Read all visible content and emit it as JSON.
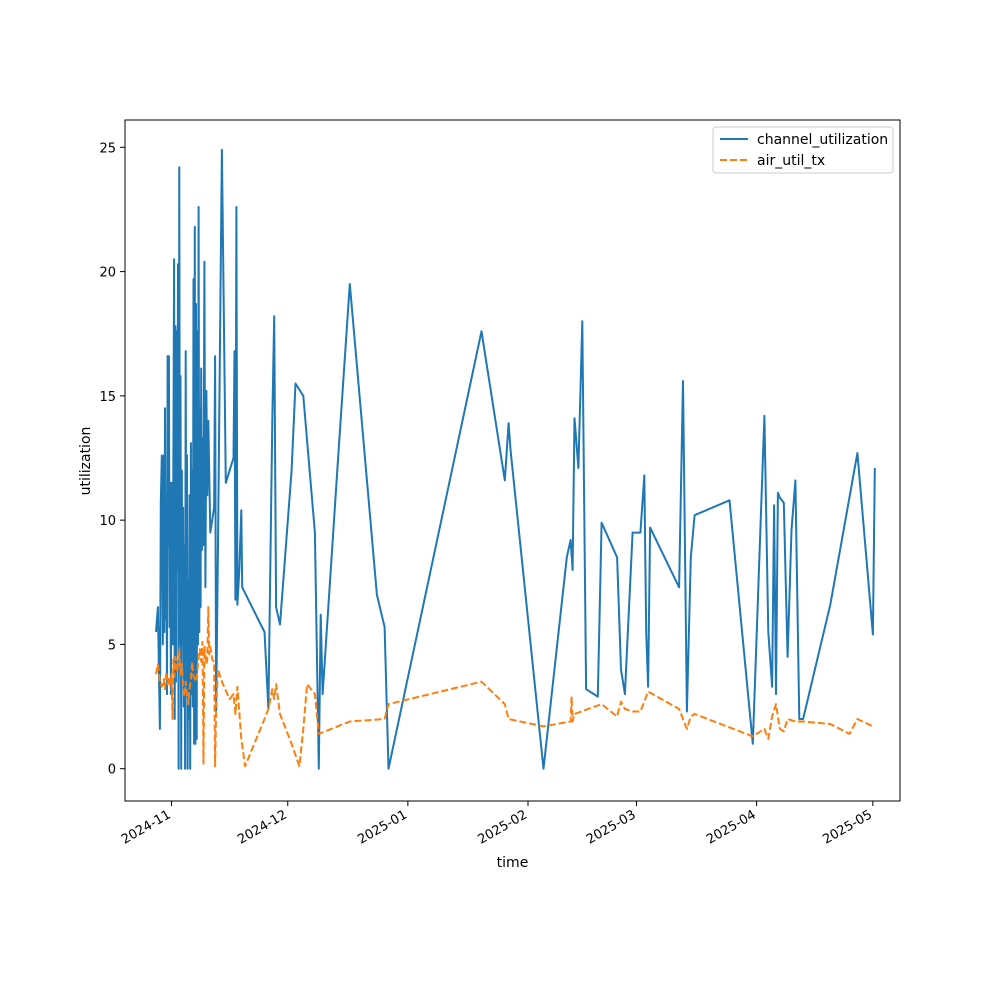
{
  "chart_data": {
    "type": "line",
    "title": "",
    "xlabel": "time",
    "ylabel": "utilization",
    "x_axis": {
      "type": "date",
      "range": [
        "2024-10-20",
        "2025-05-08"
      ],
      "ticks": [
        {
          "date": "2024-11-01",
          "label": "2024-11"
        },
        {
          "date": "2024-12-01",
          "label": "2024-12"
        },
        {
          "date": "2025-01-01",
          "label": "2025-01"
        },
        {
          "date": "2025-02-01",
          "label": "2025-02"
        },
        {
          "date": "2025-03-01",
          "label": "2025-03"
        },
        {
          "date": "2025-04-01",
          "label": "2025-04"
        },
        {
          "date": "2025-05-01",
          "label": "2025-05"
        }
      ]
    },
    "y_axis": {
      "range": [
        -1.3,
        26.1
      ],
      "ticks": [
        0,
        5,
        10,
        15,
        20,
        25
      ]
    },
    "grid": false,
    "legend_position": "top-right",
    "series": [
      {
        "name": "channel_utilization",
        "color": "#1f77b4",
        "dash": "solid",
        "points": [
          [
            "2024-10-28",
            5.5
          ],
          [
            "2024-10-28 12:00",
            6.5
          ],
          [
            "2024-10-29",
            1.6
          ],
          [
            "2024-10-29 06:00",
            10.7
          ],
          [
            "2024-10-29 12:00",
            12.6
          ],
          [
            "2024-10-29 18:00",
            5.0
          ],
          [
            "2024-10-30",
            12.6
          ],
          [
            "2024-10-30 04:00",
            5.5
          ],
          [
            "2024-10-30 08:00",
            14.5
          ],
          [
            "2024-10-30 12:00",
            6.0
          ],
          [
            "2024-10-30 16:00",
            10.7
          ],
          [
            "2024-10-30 20:00",
            3.0
          ],
          [
            "2024-10-31",
            16.6
          ],
          [
            "2024-10-31 04:00",
            9.0
          ],
          [
            "2024-10-31 08:00",
            16.6
          ],
          [
            "2024-10-31 12:00",
            5.7
          ],
          [
            "2024-10-31 16:00",
            11.5
          ],
          [
            "2024-10-31 20:00",
            3.0
          ],
          [
            "2024-11-01",
            11.5
          ],
          [
            "2024-11-01 04:00",
            9.0
          ],
          [
            "2024-11-01 08:00",
            5.0
          ],
          [
            "2024-11-01 12:00",
            12.8
          ],
          [
            "2024-11-01 16:00",
            20.5
          ],
          [
            "2024-11-01 20:00",
            2.0
          ],
          [
            "2024-11-02",
            17.8
          ],
          [
            "2024-11-02 04:00",
            3.5
          ],
          [
            "2024-11-02 08:00",
            17.6
          ],
          [
            "2024-11-02 12:00",
            8.0
          ],
          [
            "2024-11-02 16:00",
            20.3
          ],
          [
            "2024-11-02 20:00",
            0
          ],
          [
            "2024-11-03",
            24.2
          ],
          [
            "2024-11-03 04:00",
            5.0
          ],
          [
            "2024-11-03 08:00",
            15.8
          ],
          [
            "2024-11-03 12:00",
            0
          ],
          [
            "2024-11-03 16:00",
            12.0
          ],
          [
            "2024-11-03 20:00",
            5.0
          ],
          [
            "2024-11-04",
            10.5
          ],
          [
            "2024-11-04 04:00",
            2.5
          ],
          [
            "2024-11-04 08:00",
            9.0
          ],
          [
            "2024-11-04 12:00",
            0
          ],
          [
            "2024-11-04 16:00",
            16.8
          ],
          [
            "2024-11-04 20:00",
            3.0
          ],
          [
            "2024-11-05",
            12.6
          ],
          [
            "2024-11-05 04:00",
            0
          ],
          [
            "2024-11-05 08:00",
            7.5
          ],
          [
            "2024-11-05 12:00",
            2.0
          ],
          [
            "2024-11-05 16:00",
            11.0
          ],
          [
            "2024-11-05 20:00",
            0
          ],
          [
            "2024-11-06",
            13.1
          ],
          [
            "2024-11-06 04:00",
            3.0
          ],
          [
            "2024-11-06 08:00",
            12.0
          ],
          [
            "2024-11-06 12:00",
            2.5
          ],
          [
            "2024-11-06 16:00",
            19.7
          ],
          [
            "2024-11-06 20:00",
            1.0
          ],
          [
            "2024-11-07",
            21.8
          ],
          [
            "2024-11-07 04:00",
            1.0
          ],
          [
            "2024-11-07 08:00",
            18.7
          ],
          [
            "2024-11-07 12:00",
            1.2
          ],
          [
            "2024-11-07 16:00",
            17.6
          ],
          [
            "2024-11-07 20:00",
            5.0
          ],
          [
            "2024-11-08",
            22.6
          ],
          [
            "2024-11-08 04:00",
            5.5
          ],
          [
            "2024-11-08 08:00",
            14.5
          ],
          [
            "2024-11-08 12:00",
            6.5
          ],
          [
            "2024-11-08 16:00",
            16.1
          ],
          [
            "2024-11-08 20:00",
            8.8
          ],
          [
            "2024-11-09",
            13.3
          ],
          [
            "2024-11-09 06:00",
            9.0
          ],
          [
            "2024-11-09 12:00",
            20.4
          ],
          [
            "2024-11-09 18:00",
            7.3
          ],
          [
            "2024-11-10",
            15.2
          ],
          [
            "2024-11-10 06:00",
            11.0
          ],
          [
            "2024-11-10 12:00",
            14.0
          ],
          [
            "2024-11-11",
            9.5
          ],
          [
            "2024-11-12",
            10.5
          ],
          [
            "2024-11-12 06:00",
            16.6
          ],
          [
            "2024-11-12 12:00",
            2.3
          ],
          [
            "2024-11-13",
            9.0
          ],
          [
            "2024-11-14",
            24.9
          ],
          [
            "2024-11-15",
            11.5
          ],
          [
            "2024-11-16",
            12.0
          ],
          [
            "2024-11-17",
            12.5
          ],
          [
            "2024-11-17 06:00",
            16.8
          ],
          [
            "2024-11-17 12:00",
            6.8
          ],
          [
            "2024-11-17 18:00",
            22.6
          ],
          [
            "2024-11-18",
            6.6
          ],
          [
            "2024-11-18 12:00",
            8.0
          ],
          [
            "2024-11-19",
            10.4
          ],
          [
            "2024-11-19 06:00",
            7.3
          ],
          [
            "2024-11-25",
            5.5
          ],
          [
            "2024-11-26",
            2.4
          ],
          [
            "2024-11-27",
            14.0
          ],
          [
            "2024-11-27 12:00",
            18.2
          ],
          [
            "2024-11-28",
            6.5
          ],
          [
            "2024-11-29",
            5.8
          ],
          [
            "2024-12-02",
            12.0
          ],
          [
            "2024-12-03",
            15.5
          ],
          [
            "2024-12-05",
            15.0
          ],
          [
            "2024-12-08",
            9.5
          ],
          [
            "2024-12-09",
            0
          ],
          [
            "2024-12-09 12:00",
            6.2
          ],
          [
            "2024-12-10",
            3.0
          ],
          [
            "2024-12-14",
            12.5
          ],
          [
            "2024-12-17",
            19.5
          ],
          [
            "2024-12-24",
            7.0
          ],
          [
            "2024-12-26",
            5.7
          ],
          [
            "2024-12-27",
            0
          ],
          [
            "2025-01-20",
            17.6
          ],
          [
            "2025-01-26",
            11.6
          ],
          [
            "2025-01-27",
            13.9
          ],
          [
            "2025-01-27 12:00",
            12.8
          ],
          [
            "2025-02-05",
            0
          ],
          [
            "2025-02-11",
            8.5
          ],
          [
            "2025-02-12",
            9.2
          ],
          [
            "2025-02-12 12:00",
            8.0
          ],
          [
            "2025-02-13",
            14.1
          ],
          [
            "2025-02-14",
            12.1
          ],
          [
            "2025-02-15",
            18.0
          ],
          [
            "2025-02-16",
            3.2
          ],
          [
            "2025-02-19",
            2.9
          ],
          [
            "2025-02-20",
            9.9
          ],
          [
            "2025-02-24",
            8.5
          ],
          [
            "2025-02-25",
            4.0
          ],
          [
            "2025-02-26",
            3.0
          ],
          [
            "2025-02-28",
            9.5
          ],
          [
            "2025-03-02",
            9.5
          ],
          [
            "2025-03-03",
            11.8
          ],
          [
            "2025-03-03 12:00",
            5.5
          ],
          [
            "2025-03-04",
            3.3
          ],
          [
            "2025-03-04 12:00",
            9.7
          ],
          [
            "2025-03-12",
            7.3
          ],
          [
            "2025-03-13",
            15.6
          ],
          [
            "2025-03-14",
            2.3
          ],
          [
            "2025-03-15",
            8.5
          ],
          [
            "2025-03-16",
            10.2
          ],
          [
            "2025-03-25",
            10.8
          ],
          [
            "2025-03-31",
            1.0
          ],
          [
            "2025-04-03",
            14.2
          ],
          [
            "2025-04-04",
            5.5
          ],
          [
            "2025-04-05",
            3.3
          ],
          [
            "2025-04-05 12:00",
            10.6
          ],
          [
            "2025-04-06",
            3.0
          ],
          [
            "2025-04-06 12:00",
            11.1
          ],
          [
            "2025-04-07",
            10.9
          ],
          [
            "2025-04-08",
            10.7
          ],
          [
            "2025-04-09",
            4.5
          ],
          [
            "2025-04-10",
            9.6
          ],
          [
            "2025-04-11",
            11.6
          ],
          [
            "2025-04-12",
            2.0
          ],
          [
            "2025-04-13",
            2.0
          ],
          [
            "2025-04-20",
            6.6
          ],
          [
            "2025-04-27",
            12.7
          ],
          [
            "2025-05-01",
            5.4
          ],
          [
            "2025-05-01 12:00",
            12.1
          ]
        ]
      },
      {
        "name": "air_util_tx",
        "color": "#ff7f0e",
        "dash": "dashed",
        "points": [
          [
            "2024-10-28",
            3.8
          ],
          [
            "2024-10-28 12:00",
            4.2
          ],
          [
            "2024-10-29",
            3.5
          ],
          [
            "2024-10-29 12:00",
            3.3
          ],
          [
            "2024-10-30",
            3.6
          ],
          [
            "2024-10-30 08:00",
            3.2
          ],
          [
            "2024-10-30 16:00",
            3.9
          ],
          [
            "2024-10-31",
            3.4
          ],
          [
            "2024-10-31 08:00",
            3.7
          ],
          [
            "2024-10-31 16:00",
            3.3
          ],
          [
            "2024-11-01",
            3.8
          ],
          [
            "2024-11-01 06:00",
            2.0
          ],
          [
            "2024-11-01 12:00",
            4.4
          ],
          [
            "2024-11-01 18:00",
            3.7
          ],
          [
            "2024-11-02",
            4.5
          ],
          [
            "2024-11-02 12:00",
            3.9
          ],
          [
            "2024-11-03",
            4.8
          ],
          [
            "2024-11-03 08:00",
            3.8
          ],
          [
            "2024-11-03 16:00",
            4.2
          ],
          [
            "2024-11-04",
            3.3
          ],
          [
            "2024-11-04 08:00",
            2.9
          ],
          [
            "2024-11-04 16:00",
            3.5
          ],
          [
            "2024-11-05",
            3.0
          ],
          [
            "2024-11-05 08:00",
            2.6
          ],
          [
            "2024-11-05 16:00",
            3.2
          ],
          [
            "2024-11-06",
            3.6
          ],
          [
            "2024-11-06 08:00",
            4.3
          ],
          [
            "2024-11-06 16:00",
            3.7
          ],
          [
            "2024-11-07",
            3.6
          ],
          [
            "2024-11-07 08:00",
            3.5
          ],
          [
            "2024-11-07 16:00",
            3.9
          ],
          [
            "2024-11-08",
            4.5
          ],
          [
            "2024-11-08 08:00",
            4.8
          ],
          [
            "2024-11-08 16:00",
            4.3
          ],
          [
            "2024-11-09",
            5.1
          ],
          [
            "2024-11-09 06:00",
            0.2
          ],
          [
            "2024-11-09 12:00",
            4.9
          ],
          [
            "2024-11-10",
            4.2
          ],
          [
            "2024-11-10 06:00",
            4.4
          ],
          [
            "2024-11-10 12:00",
            6.5
          ],
          [
            "2024-11-10 18:00",
            4.6
          ],
          [
            "2024-11-11",
            4.9
          ],
          [
            "2024-11-11 12:00",
            4.4
          ],
          [
            "2024-11-12",
            4.3
          ],
          [
            "2024-11-12 06:00",
            0.1
          ],
          [
            "2024-11-12 12:00",
            2.3
          ],
          [
            "2024-11-13",
            4.0
          ],
          [
            "2024-11-14",
            3.5
          ],
          [
            "2024-11-16",
            2.8
          ],
          [
            "2024-11-17",
            3.0
          ],
          [
            "2024-11-17 12:00",
            2.2
          ],
          [
            "2024-11-18",
            3.3
          ],
          [
            "2024-11-19",
            1.2
          ],
          [
            "2024-11-20",
            0.1
          ],
          [
            "2024-11-25",
            2.0
          ],
          [
            "2024-11-26",
            2.4
          ],
          [
            "2024-11-27",
            3.2
          ],
          [
            "2024-11-27 12:00",
            2.8
          ],
          [
            "2024-11-28",
            3.4
          ],
          [
            "2024-11-29",
            2.2
          ],
          [
            "2024-12-02",
            1.0
          ],
          [
            "2024-12-04",
            0.1
          ],
          [
            "2024-12-05",
            1.6
          ],
          [
            "2024-12-06",
            3.4
          ],
          [
            "2024-12-08",
            3.0
          ],
          [
            "2024-12-09",
            1.4
          ],
          [
            "2024-12-17",
            1.9
          ],
          [
            "2024-12-26",
            2.0
          ],
          [
            "2024-12-27",
            2.6
          ],
          [
            "2025-01-20",
            3.5
          ],
          [
            "2025-01-26",
            2.6
          ],
          [
            "2025-01-27",
            2.0
          ],
          [
            "2025-02-05",
            1.7
          ],
          [
            "2025-02-12",
            1.9
          ],
          [
            "2025-02-12 06:00",
            2.9
          ],
          [
            "2025-02-12 12:00",
            1.9
          ],
          [
            "2025-02-13",
            2.2
          ],
          [
            "2025-02-20",
            2.6
          ],
          [
            "2025-02-24",
            2.1
          ],
          [
            "2025-02-25",
            2.7
          ],
          [
            "2025-02-26",
            2.4
          ],
          [
            "2025-02-28",
            2.3
          ],
          [
            "2025-03-02",
            2.3
          ],
          [
            "2025-03-04",
            3.1
          ],
          [
            "2025-03-12",
            2.4
          ],
          [
            "2025-03-13",
            2.0
          ],
          [
            "2025-03-14",
            1.6
          ],
          [
            "2025-03-15",
            2.1
          ],
          [
            "2025-03-16",
            2.2
          ],
          [
            "2025-03-31",
            1.3
          ],
          [
            "2025-04-03",
            1.6
          ],
          [
            "2025-04-04",
            1.2
          ],
          [
            "2025-04-05",
            2.1
          ],
          [
            "2025-04-06",
            2.6
          ],
          [
            "2025-04-07",
            1.6
          ],
          [
            "2025-04-08",
            1.5
          ],
          [
            "2025-04-09",
            2.0
          ],
          [
            "2025-04-11",
            1.9
          ],
          [
            "2025-04-13",
            1.9
          ],
          [
            "2025-04-20",
            1.8
          ],
          [
            "2025-04-25",
            1.4
          ],
          [
            "2025-04-27",
            2.0
          ],
          [
            "2025-05-01",
            1.7
          ]
        ]
      }
    ]
  }
}
